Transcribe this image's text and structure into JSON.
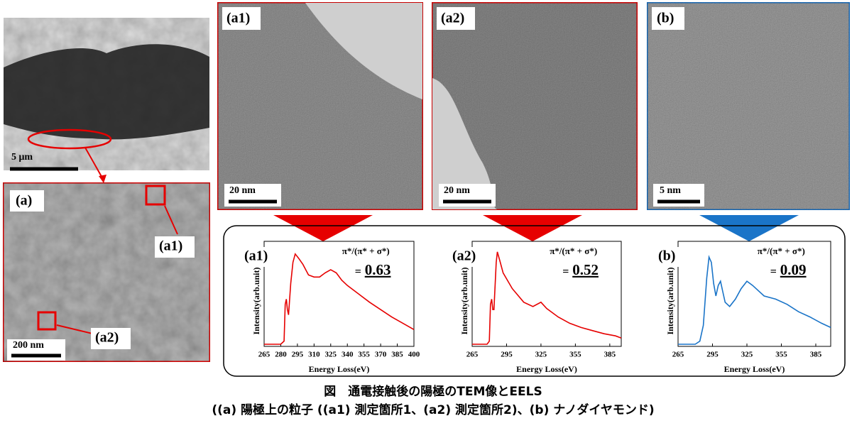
{
  "figure": {
    "overview": {
      "scale_bar": "5 μm"
    },
    "panel_a": {
      "label": "(a)",
      "scale_bar": "200 nm",
      "callouts": [
        "(a1)",
        "(a2)"
      ]
    },
    "panel_a1": {
      "label": "(a1)",
      "scale_bar": "20 nm"
    },
    "panel_a2": {
      "label": "(a2)",
      "scale_bar": "20 nm"
    },
    "panel_b": {
      "label": "(b)",
      "scale_bar": "5 nm"
    },
    "caption": [
      "図　通電接触後の陽極のTEM像とEELS",
      "((a) 陽極上の粒子 ((a1) 測定箇所1、(a2) 測定箇所2)、(b) ナノダイヤモンド)"
    ]
  },
  "chart_data": [
    {
      "type": "line",
      "title": "(a1)",
      "annotation": "π*/(π* + σ*)",
      "ratio_prefix": "=",
      "ratio": "0.63",
      "xlabel": "Energy Loss(eV)",
      "ylabel": "Intensity(arb.unit)",
      "color": "#e60000",
      "x": [
        265,
        280,
        283,
        284,
        285,
        286,
        287,
        289,
        291,
        293,
        296,
        300,
        305,
        310,
        315,
        320,
        325,
        330,
        335,
        340,
        350,
        360,
        370,
        380,
        390,
        400
      ],
      "values": [
        2,
        2,
        5,
        40,
        45,
        35,
        30,
        60,
        80,
        88,
        84,
        78,
        68,
        66,
        66,
        70,
        73,
        70,
        63,
        58,
        50,
        42,
        35,
        28,
        22,
        16
      ],
      "xlim": [
        265,
        400
      ],
      "xticks": [
        265,
        280,
        295,
        310,
        325,
        340,
        355,
        370,
        385,
        400
      ],
      "ylim": [
        0,
        100
      ]
    },
    {
      "type": "line",
      "title": "(a2)",
      "annotation": "π*/(π* + σ*)",
      "ratio_prefix": "=",
      "ratio": "0.52",
      "xlabel": "Energy Loss(eV)",
      "ylabel": "Intensity(arb.unit)",
      "color": "#e60000",
      "x": [
        265,
        278,
        280,
        281,
        282,
        283,
        284,
        286,
        287,
        289,
        292,
        300,
        310,
        318,
        325,
        330,
        340,
        350,
        360,
        370,
        380,
        390,
        395
      ],
      "values": [
        2,
        2,
        5,
        40,
        45,
        35,
        35,
        80,
        90,
        82,
        70,
        55,
        42,
        38,
        42,
        36,
        28,
        22,
        18,
        15,
        12,
        10,
        8
      ],
      "xlim": [
        265,
        395
      ],
      "xticks": [
        265,
        295,
        325,
        355,
        385
      ],
      "ylim": [
        0,
        100
      ]
    },
    {
      "type": "line",
      "title": "(b)",
      "annotation": "π*/(π* + σ*)",
      "ratio_prefix": "=",
      "ratio": "0.09",
      "xlabel": "Energy Loss(eV)",
      "ylabel": "Intensity(arb.unit)",
      "color": "#1a74c8",
      "x": [
        265,
        280,
        284,
        287,
        290,
        292,
        294,
        296,
        298,
        300,
        302,
        304,
        306,
        310,
        315,
        320,
        325,
        330,
        340,
        350,
        360,
        370,
        380,
        390,
        398
      ],
      "values": [
        2,
        2,
        5,
        20,
        65,
        85,
        80,
        60,
        48,
        58,
        62,
        52,
        42,
        38,
        45,
        55,
        62,
        58,
        48,
        45,
        40,
        33,
        28,
        22,
        18
      ],
      "xlim": [
        265,
        398
      ],
      "xticks": [
        265,
        295,
        325,
        355,
        385
      ],
      "ylim": [
        0,
        100
      ]
    }
  ]
}
